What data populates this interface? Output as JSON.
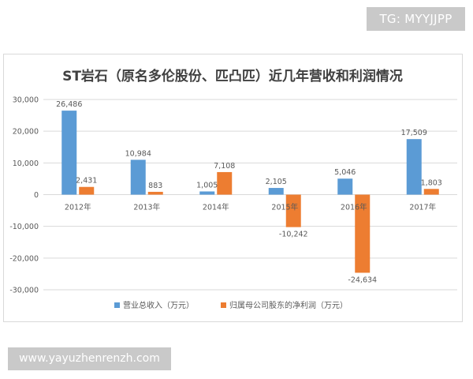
{
  "watermarks": {
    "top_right": "TG: MYYJJPP",
    "bottom_left": "www.yayuzhenrenzh.com"
  },
  "colors": {
    "revenue": "#5b9bd5",
    "net_profit": "#ed7d31",
    "gridline": "#d9d9d9",
    "axis_text": "#595959",
    "title_text": "#404040"
  },
  "chart_data": {
    "type": "bar",
    "title": "ST岩石（原名多伦股份、匹凸匹）近几年营收和利润情况",
    "categories": [
      "2012年",
      "2013年",
      "2014年",
      "2015年",
      "2016年",
      "2017年"
    ],
    "series": [
      {
        "name": "营业总收入（万元）",
        "values": [
          26486,
          10984,
          1005,
          2105,
          5046,
          17509
        ],
        "labels": [
          "26,486",
          "10,984",
          "1,005",
          "2,105",
          "5,046",
          "17,509"
        ]
      },
      {
        "name": "归属母公司股东的净利润（万元）",
        "values": [
          2431,
          883,
          7108,
          -10242,
          -24634,
          1803
        ],
        "labels": [
          "2,431",
          "883",
          "7,108",
          "-10,242",
          "-24,634",
          "1,803"
        ]
      }
    ],
    "ylim": [
      -30000,
      30000
    ],
    "yticks": [
      30000,
      20000,
      10000,
      0,
      -10000,
      -20000,
      -30000
    ],
    "ytick_labels": [
      "30,000",
      "20,000",
      "10,000",
      "0",
      "-10,000",
      "-20,000",
      "-30,000"
    ],
    "grid": true,
    "legend": "bottom"
  }
}
